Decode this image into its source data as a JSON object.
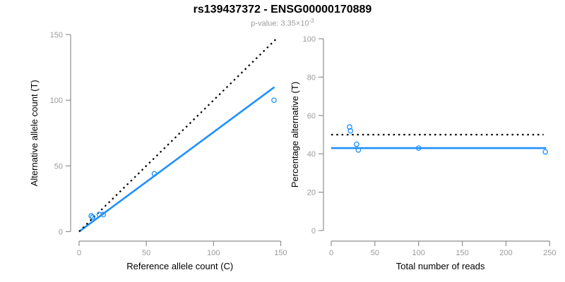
{
  "header": {
    "title": "rs139437372 - ENSG00000170889",
    "subtitle_base": "p-value: 3.35×10",
    "subtitle_exponent": "-3"
  },
  "colors": {
    "blue": "#1e90ff",
    "black": "#000000",
    "axis": "#8f8f8f",
    "tick_label": "#9a9a9a",
    "axis_title": "#000000"
  },
  "chart_data": [
    {
      "type": "scatter",
      "panel": "left",
      "xlabel": "Reference allele count (C)",
      "ylabel": "Alternative allele count (T)",
      "xlim": [
        0,
        150
      ],
      "ylim": [
        0,
        150
      ],
      "xticks": [
        0,
        50,
        100,
        150
      ],
      "yticks": [
        0,
        50,
        100,
        150
      ],
      "grid": false,
      "points": [
        [
          9,
          12
        ],
        [
          10,
          11
        ],
        [
          15,
          13
        ],
        [
          18,
          13
        ],
        [
          56,
          44
        ],
        [
          145,
          100
        ]
      ],
      "lines": [
        {
          "name": "fit-line",
          "label": "fitted allelic ratio",
          "style": "solid",
          "color": "blue",
          "from": [
            0,
            0
          ],
          "to": [
            145.3,
            110
          ]
        },
        {
          "name": "identity-line",
          "label": "identity y=x",
          "style": "dotted",
          "color": "black",
          "from": [
            0,
            0
          ],
          "to": [
            147,
            147
          ]
        }
      ]
    },
    {
      "type": "scatter",
      "panel": "right",
      "xlabel": "Total number of reads",
      "ylabel": "Percentage alternative (T)",
      "xlim": [
        0,
        250
      ],
      "ylim": [
        0,
        100
      ],
      "xticks": [
        0,
        50,
        100,
        150,
        200,
        250
      ],
      "yticks": [
        0,
        20,
        40,
        60,
        80,
        100
      ],
      "grid": false,
      "points": [
        [
          21,
          54
        ],
        [
          22,
          52
        ],
        [
          29,
          45
        ],
        [
          31,
          42
        ],
        [
          100,
          43
        ],
        [
          245,
          41
        ]
      ],
      "lines": [
        {
          "name": "fit-line",
          "label": "fitted percentage",
          "style": "solid",
          "color": "blue",
          "from": [
            0,
            43
          ],
          "to": [
            246,
            43
          ]
        },
        {
          "name": "expected-line",
          "label": "expected 50%",
          "style": "dotted",
          "color": "black",
          "from": [
            0,
            50
          ],
          "to": [
            243,
            50
          ]
        }
      ]
    }
  ]
}
